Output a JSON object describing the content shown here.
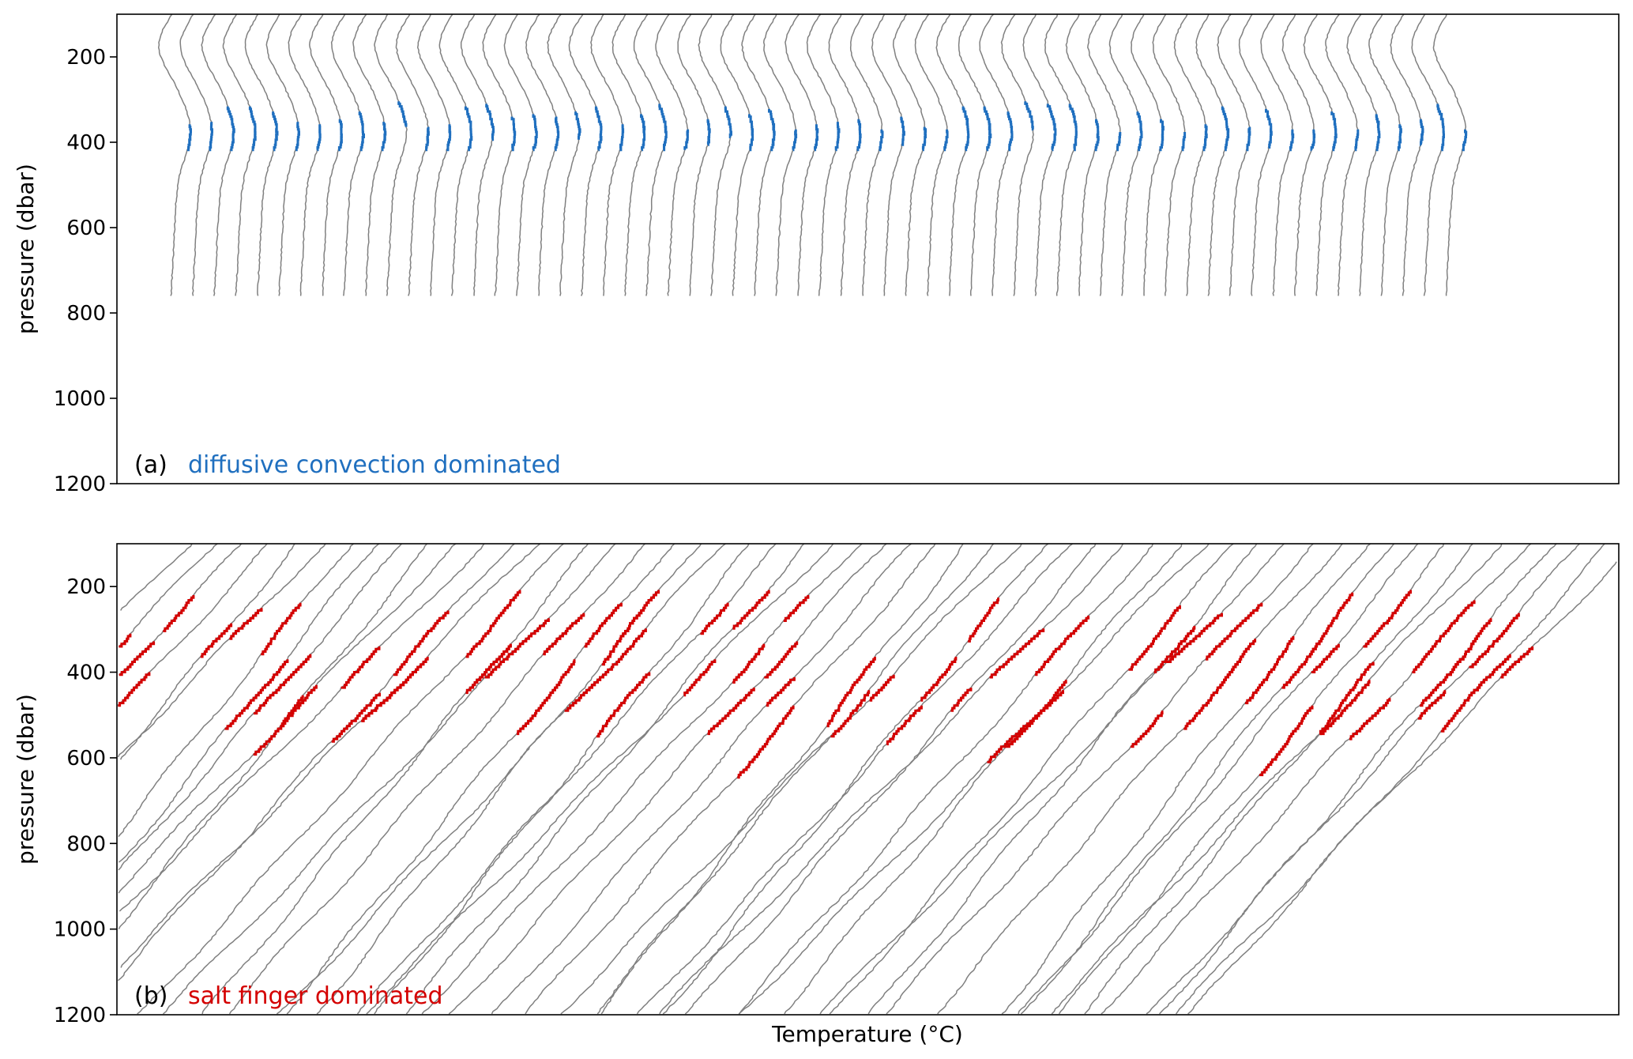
{
  "chart_data": [
    {
      "type": "line",
      "panel_tag": "(a)",
      "description": "diffusive convection dominated",
      "description_color": "#1f6fbf",
      "ylabel": "pressure (dbar)",
      "ylim": [
        1200,
        100
      ],
      "yticks": [
        "200",
        "400",
        "600",
        "800",
        "1000",
        "1200"
      ],
      "profile_color": "#808080",
      "highlight_color": "#1f6fbf",
      "profile_count": 60,
      "profile_bottom_pressure": 760,
      "staircase_pressure_range": [
        300,
        420
      ]
    },
    {
      "type": "line",
      "panel_tag": "(b)",
      "description": "salt finger dominated",
      "description_color": "#d40000",
      "ylabel": "pressure (dbar)",
      "xlabel": "Temperature (°C)",
      "ylim": [
        1200,
        100
      ],
      "yticks": [
        "200",
        "400",
        "600",
        "800",
        "1000",
        "1200"
      ],
      "profile_color": "#808080",
      "highlight_color": "#d40000",
      "profile_count": 55,
      "profile_bottom_pressure": 1200,
      "staircase_pressure_range": [
        200,
        680
      ]
    }
  ]
}
